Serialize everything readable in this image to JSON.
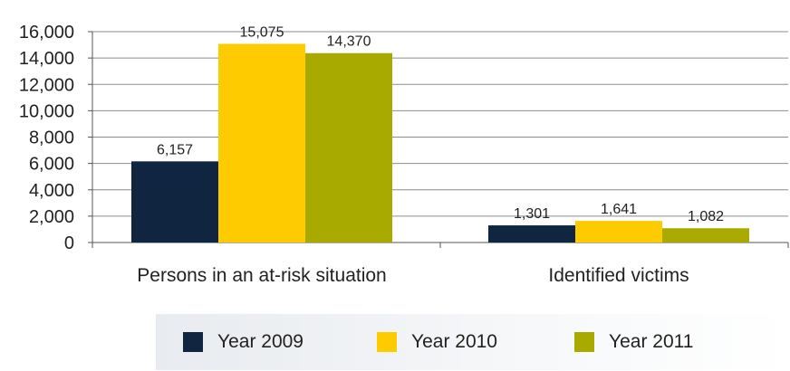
{
  "chart_data": {
    "type": "bar",
    "title": "",
    "xlabel": "",
    "ylabel": "",
    "categories": [
      "Persons in an at-risk situation",
      "Identified victims"
    ],
    "series": [
      {
        "name": "Year 2009",
        "values": [
          6157,
          1301
        ],
        "labels": [
          "6,157",
          "1,301"
        ],
        "color": "#0f2540"
      },
      {
        "name": "Year 2010",
        "values": [
          15075,
          1641
        ],
        "labels": [
          "15,075",
          "1,641"
        ],
        "color": "#fdcb00"
      },
      {
        "name": "Year 2011",
        "values": [
          14370,
          1082
        ],
        "labels": [
          "14,370",
          "1,082"
        ],
        "color": "#a9aa00"
      }
    ],
    "ylim": [
      0,
      16000
    ],
    "yticks": [
      0,
      2000,
      4000,
      6000,
      8000,
      10000,
      12000,
      14000,
      16000
    ],
    "ytick_labels": [
      "0",
      "2,000",
      "4,000",
      "6,000",
      "8,000",
      "10,000",
      "12,000",
      "14,000",
      "16,000"
    ],
    "grid": true,
    "legend_position": "bottom"
  }
}
